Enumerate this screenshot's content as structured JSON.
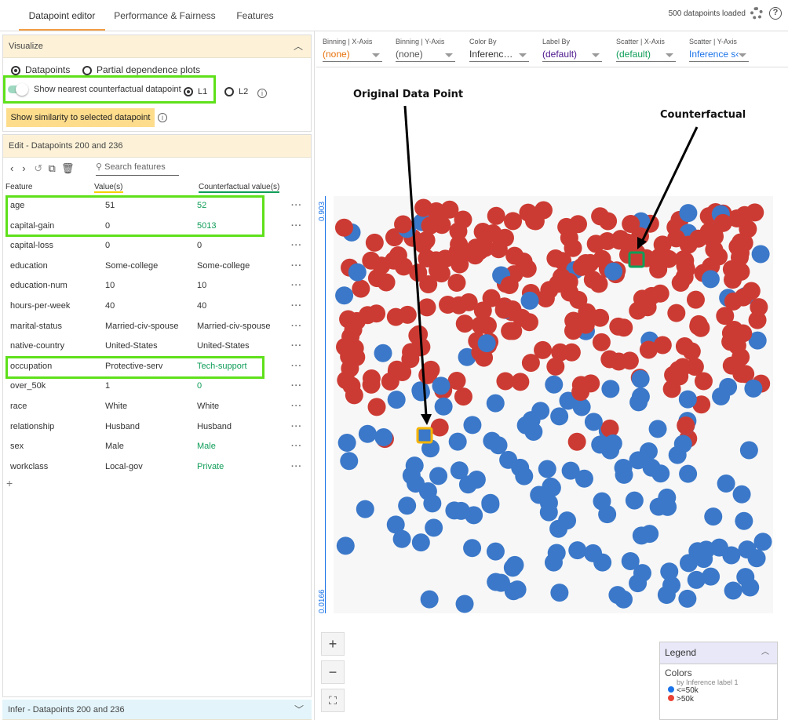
{
  "tabs": [
    {
      "label": "Datapoint editor"
    },
    {
      "label": "Performance & Fairness"
    },
    {
      "label": "Features"
    }
  ],
  "status": "500 datapoints loaded",
  "visualize": {
    "title": "Visualize",
    "opt_datapoints": "Datapoints",
    "opt_pdp": "Partial dependence plots",
    "toggle_label": "Show nearest counterfactual datapoint",
    "l1": "L1",
    "l2": "L2",
    "similarity_button": "Show similarity to selected datapoint"
  },
  "edit": {
    "title": "Edit - Datapoints 200 and 236",
    "search_placeholder": "Search features",
    "col_feature": "Feature",
    "col_value": "Value(s)",
    "col_cf": "Counterfactual value(s)",
    "rows": [
      {
        "f": "age",
        "v": "51",
        "c": "52",
        "changed": true
      },
      {
        "f": "capital-gain",
        "v": "0",
        "c": "5013",
        "changed": true
      },
      {
        "f": "capital-loss",
        "v": "0",
        "c": "0",
        "changed": false
      },
      {
        "f": "education",
        "v": "Some-college",
        "c": "Some-college",
        "changed": false
      },
      {
        "f": "education-num",
        "v": "10",
        "c": "10",
        "changed": false
      },
      {
        "f": "hours-per-week",
        "v": "40",
        "c": "40",
        "changed": false
      },
      {
        "f": "marital-status",
        "v": "Married-civ-spouse",
        "c": "Married-civ-spouse",
        "changed": false
      },
      {
        "f": "native-country",
        "v": "United-States",
        "c": "United-States",
        "changed": false
      },
      {
        "f": "occupation",
        "v": "Protective-serv",
        "c": "Tech-support",
        "changed": true
      },
      {
        "f": "over_50k",
        "v": "1",
        "c": "0",
        "changed": true
      },
      {
        "f": "race",
        "v": "White",
        "c": "White",
        "changed": false
      },
      {
        "f": "relationship",
        "v": "Husband",
        "c": "Husband",
        "changed": false
      },
      {
        "f": "sex",
        "v": "Male",
        "c": "Male",
        "changed": true
      },
      {
        "f": "workclass",
        "v": "Local-gov",
        "c": "Private",
        "changed": true
      }
    ],
    "add": "+"
  },
  "infer": {
    "title": "Infer - Datapoints 200 and 236"
  },
  "controls": [
    {
      "label": "Binning | X-Axis",
      "value": "(none)",
      "color": "#e8710a"
    },
    {
      "label": "Binning | Y-Axis",
      "value": "(none)",
      "color": "#555555"
    },
    {
      "label": "Color By",
      "value": "Inferenc…",
      "color": "#333333"
    },
    {
      "label": "Label By",
      "value": "(default)",
      "color": "#4a148c"
    },
    {
      "label": "Scatter | X-Axis",
      "value": "(default)",
      "color": "#0f9d58"
    },
    {
      "label": "Scatter | Y-Axis",
      "value": "Inference s‹",
      "color": "#1a73e8"
    }
  ],
  "chart": {
    "y_max": "0.903",
    "y_min": "0.0166",
    "blue": "#3b78c9",
    "red": "#cc3b33"
  },
  "annotations": {
    "original": "Original Data Point",
    "counterfactual": "Counterfactual"
  },
  "zoom": {
    "in": "+",
    "out": "−",
    "fit": "⛶"
  },
  "legend": {
    "title": "Legend",
    "colors": "Colors",
    "by": "by Inference label 1",
    "items": [
      {
        "label": "<=50k",
        "color": "#1a73e8"
      },
      {
        "label": ">50k",
        "color": "#ea4335"
      }
    ]
  }
}
